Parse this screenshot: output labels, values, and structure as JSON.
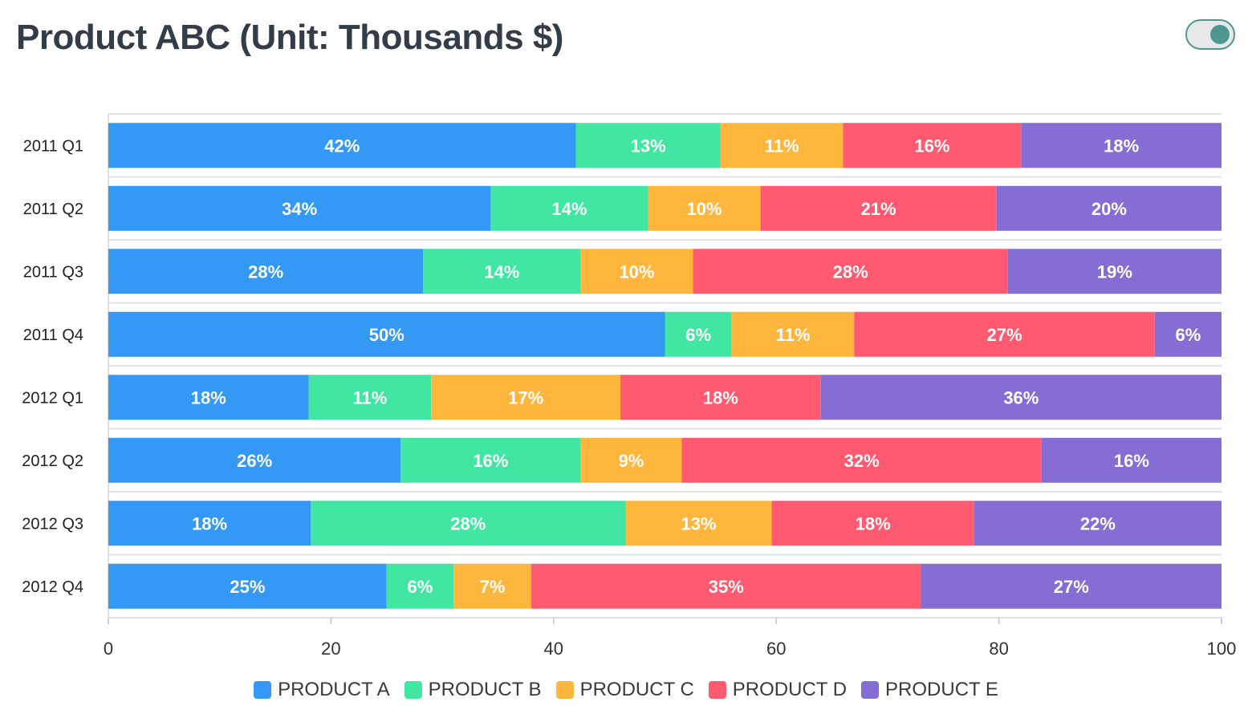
{
  "title": "Product ABC (Unit: Thousands $)",
  "toggle": {
    "state": "on"
  },
  "chart_data": {
    "type": "bar",
    "orientation": "horizontal",
    "stacked": "percent",
    "categories": [
      "2011 Q1",
      "2011 Q2",
      "2011 Q3",
      "2011 Q4",
      "2012 Q1",
      "2012 Q2",
      "2012 Q3",
      "2012 Q4"
    ],
    "series": [
      {
        "name": "PRODUCT A",
        "color": "#3399f5",
        "values": [
          42,
          34,
          28,
          50,
          18,
          26,
          18,
          25
        ],
        "labels": [
          "42%",
          "34%",
          "28%",
          "50%",
          "18%",
          "26%",
          "18%",
          "25%"
        ]
      },
      {
        "name": "PRODUCT B",
        "color": "#40e6a1",
        "values": [
          13,
          14,
          14,
          6,
          11,
          16,
          28,
          6
        ],
        "labels": [
          "13%",
          "14%",
          "14%",
          "6%",
          "11%",
          "16%",
          "28%",
          "6%"
        ]
      },
      {
        "name": "PRODUCT C",
        "color": "#feb63c",
        "values": [
          11,
          10,
          10,
          11,
          17,
          9,
          13,
          7
        ],
        "labels": [
          "11%",
          "10%",
          "10%",
          "11%",
          "17%",
          "9%",
          "13%",
          "7%"
        ]
      },
      {
        "name": "PRODUCT D",
        "color": "#ff5a70",
        "values": [
          16,
          21,
          28,
          27,
          18,
          32,
          18,
          35
        ],
        "labels": [
          "16%",
          "21%",
          "28%",
          "27%",
          "18%",
          "32%",
          "18%",
          "35%"
        ]
      },
      {
        "name": "PRODUCT E",
        "color": "#866dd4",
        "values": [
          18,
          20,
          19,
          6,
          36,
          16,
          22,
          27
        ],
        "labels": [
          "18%",
          "20%",
          "19%",
          "6%",
          "36%",
          "16%",
          "22%",
          "27%"
        ]
      }
    ],
    "xlim": [
      0,
      100
    ],
    "xticks": [
      "0",
      "20",
      "40",
      "60",
      "80",
      "100"
    ],
    "grid": true,
    "legend": "bottom"
  }
}
